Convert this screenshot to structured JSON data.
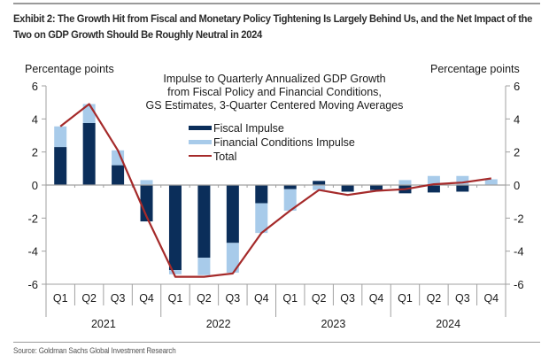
{
  "title": "Exhibit 2: The Growth Hit from Fiscal and Monetary Policy Tightening Is Largely Behind Us, and the Net Impact of the Two on GDP Growth Should Be Roughly Neutral in 2024",
  "source": "Source: Goldman Sachs Global Investment Research",
  "chart_data": {
    "type": "bar",
    "subtype": "stacked bar with line overlay",
    "title": "Impulse to Quarterly Annualized GDP Growth from Fiscal Policy and Financial Conditions, GS Estimates, 3-Quarter Centered Moving Averages",
    "title_lines": [
      "Impulse to Quarterly Annualized GDP Growth",
      "from Fiscal Policy and Financial Conditions,",
      "GS Estimates, 3-Quarter Centered Moving Averages"
    ],
    "ylabel_left": "Percentage points",
    "ylabel_right": "Percentage points",
    "ylim": [
      -6,
      6
    ],
    "yticks": [
      6,
      4,
      2,
      0,
      -2,
      -4,
      -6
    ],
    "grid": false,
    "legend_position": "top-center",
    "categories": [
      "Q1",
      "Q2",
      "Q3",
      "Q4",
      "Q1",
      "Q2",
      "Q3",
      "Q4",
      "Q1",
      "Q2",
      "Q3",
      "Q4",
      "Q1",
      "Q2",
      "Q3",
      "Q4"
    ],
    "years": [
      "2021",
      "2022",
      "2023",
      "2024"
    ],
    "series": [
      {
        "name": "Fiscal Impulse",
        "type": "bar",
        "color": "#0b2e5a",
        "values": [
          2.3,
          3.75,
          1.2,
          -2.2,
          -5.15,
          -4.4,
          -3.5,
          -1.1,
          -0.25,
          0.25,
          -0.4,
          -0.3,
          -0.5,
          -0.45,
          -0.4,
          0.0
        ]
      },
      {
        "name": "Financial Conditions Impulse",
        "type": "bar",
        "color": "#a8cbea",
        "values": [
          1.25,
          1.15,
          0.9,
          0.3,
          -0.25,
          -1.05,
          -1.8,
          -1.8,
          -1.3,
          -0.3,
          0.0,
          -0.05,
          0.3,
          0.55,
          0.55,
          0.35
        ]
      },
      {
        "name": "Total",
        "type": "line",
        "color": "#a52a2a",
        "values": [
          3.55,
          4.9,
          2.1,
          -1.9,
          -5.55,
          -5.55,
          -5.35,
          -2.9,
          -1.55,
          -0.3,
          -0.6,
          -0.35,
          -0.25,
          0.05,
          0.15,
          0.4
        ]
      }
    ]
  }
}
